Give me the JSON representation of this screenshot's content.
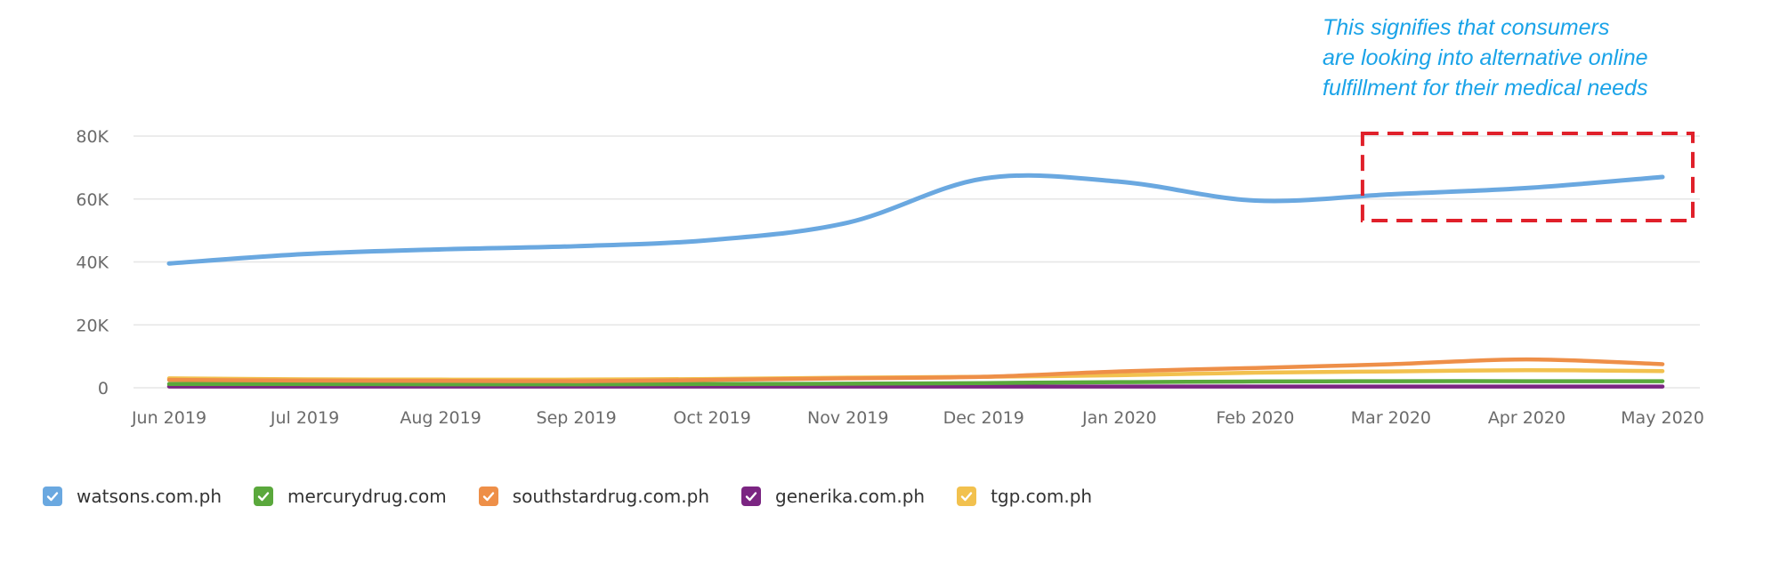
{
  "chart_data": {
    "type": "line",
    "categories": [
      "Jun 2019",
      "Jul 2019",
      "Aug 2019",
      "Sep 2019",
      "Oct 2019",
      "Nov 2019",
      "Dec 2019",
      "Jan 2020",
      "Feb 2020",
      "Mar 2020",
      "Apr 2020",
      "May 2020"
    ],
    "ylim": [
      0,
      80000
    ],
    "y_ticks": [
      {
        "value": 0,
        "label": "0"
      },
      {
        "value": 20000,
        "label": "20K"
      },
      {
        "value": 40000,
        "label": "40K"
      },
      {
        "value": 60000,
        "label": "60K"
      },
      {
        "value": 80000,
        "label": "80K"
      }
    ],
    "grid": true,
    "legend_position": "bottom-left",
    "series": [
      {
        "name": "watsons.com.ph",
        "color": "#6aa8e0",
        "values": [
          39500,
          42500,
          44000,
          45000,
          47000,
          52500,
          66500,
          65500,
          59500,
          61500,
          63500,
          67000
        ]
      },
      {
        "name": "mercurydrug.com",
        "color": "#5aa83c",
        "values": [
          1200,
          1200,
          1100,
          1100,
          1200,
          1300,
          1500,
          1800,
          2000,
          2100,
          2100,
          2100
        ]
      },
      {
        "name": "southstardrug.com.ph",
        "color": "#ee8f48",
        "values": [
          2500,
          2300,
          2200,
          2100,
          2500,
          3000,
          3500,
          5200,
          6300,
          7500,
          9000,
          7500
        ]
      },
      {
        "name": "generika.com.ph",
        "color": "#7b2582",
        "values": [
          400,
          400,
          400,
          400,
          400,
          400,
          400,
          400,
          400,
          400,
          400,
          400
        ]
      },
      {
        "name": "tgp.com.ph",
        "color": "#f2c14e",
        "values": [
          3000,
          2700,
          2600,
          2600,
          2800,
          3200,
          3500,
          4000,
          4800,
          5200,
          5600,
          5300
        ]
      }
    ],
    "annotations": [
      {
        "lines": [
          "This signifies that consumers",
          "are looking into alternative online",
          "fulfillment for their medical needs"
        ],
        "color": "#1aa3e8",
        "highlight": {
          "type": "dashed-box",
          "color": "#e0202a",
          "x_range": [
            "Mar 2020",
            "May 2020"
          ]
        }
      }
    ]
  }
}
